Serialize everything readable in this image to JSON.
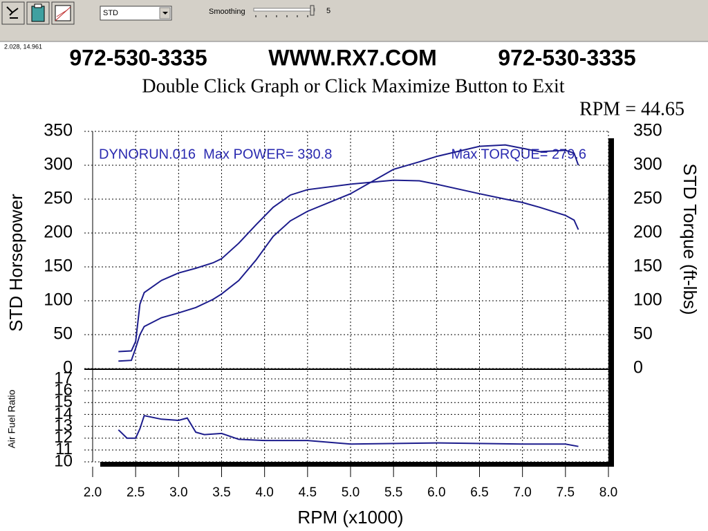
{
  "toolbar": {
    "mode": "STD",
    "smoothing_label": "Smoothing",
    "smoothing_value": "5"
  },
  "status": "2.028, 14.961",
  "header": {
    "phone_left": "972-530-3335",
    "website": "WWW.RX7.COM",
    "phone_right": "972-530-3335",
    "instruction": "Double Click Graph or Click Maximize Button to Exit",
    "readout": "RPM = 44.65"
  },
  "chart_data": [
    {
      "type": "line",
      "ylabel": "STD Horsepower",
      "y2label": "STD Torque (ft-lbs)",
      "annotations": [
        "DYNORUN.016  Max POWER= 330.8",
        "Max TORQUE= 279.6"
      ],
      "xlim": [
        2,
        8
      ],
      "xticks": [
        {
          "value": 2,
          "label": "2.0"
        },
        2.5,
        {
          "value": 3,
          "label": "3.0"
        },
        3.5,
        {
          "value": 4,
          "label": "4.0"
        },
        4.5,
        {
          "value": 5,
          "label": "5.0"
        },
        5.5,
        {
          "value": 6,
          "label": "6.0"
        },
        6.5,
        {
          "value": 7,
          "label": "7.0"
        },
        7.5,
        {
          "value": 8,
          "label": "8.0"
        }
      ],
      "ylim": [
        0,
        350
      ],
      "yticks": [
        0,
        50,
        100,
        150,
        200,
        250,
        300,
        350
      ],
      "y2lim": [
        0,
        350
      ],
      "y2ticks": [
        0,
        50,
        100,
        150,
        200,
        250,
        300,
        350
      ],
      "grid": true,
      "x": [
        2.3,
        2.45,
        2.5,
        2.55,
        2.6,
        2.8,
        3.0,
        3.2,
        3.4,
        3.5,
        3.7,
        3.9,
        4.1,
        4.3,
        4.5,
        5.0,
        5.5,
        5.8,
        6.0,
        6.5,
        6.8,
        7.0,
        7.2,
        7.5,
        7.6,
        7.65
      ],
      "series": [
        {
          "color": "#1c1c8c",
          "values": [
            11,
            12,
            30,
            50,
            62,
            75,
            82,
            90,
            102,
            110,
            130,
            160,
            195,
            218,
            232,
            258,
            294,
            305,
            313,
            328,
            330,
            325,
            320,
            322,
            318,
            300
          ]
        },
        {
          "color": "#1c1c8c",
          "axis": "y2",
          "values": [
            25,
            26,
            40,
            95,
            112,
            130,
            141,
            148,
            156,
            162,
            185,
            212,
            238,
            256,
            264,
            272,
            278,
            277,
            272,
            258,
            250,
            245,
            238,
            226,
            219,
            205
          ]
        }
      ]
    },
    {
      "type": "line",
      "ylabel": "Air Fuel Ratio",
      "xlabel": "RPM (x1000)",
      "xlim": [
        2,
        8
      ],
      "xticks": [
        {
          "value": 2,
          "label": "2.0"
        },
        2.5,
        {
          "value": 3,
          "label": "3.0"
        },
        3.5,
        {
          "value": 4,
          "label": "4.0"
        },
        4.5,
        {
          "value": 5,
          "label": "5.0"
        },
        5.5,
        {
          "value": 6,
          "label": "6.0"
        },
        6.5,
        {
          "value": 7,
          "label": "7.0"
        },
        7.5,
        {
          "value": 8,
          "label": "8.0"
        }
      ],
      "ylim": [
        10,
        17.7
      ],
      "yticks": [
        10,
        11,
        12,
        13,
        14,
        15,
        16,
        17
      ],
      "grid": true,
      "x": [
        2.3,
        2.4,
        2.5,
        2.55,
        2.6,
        2.8,
        3.0,
        3.1,
        3.2,
        3.3,
        3.5,
        3.7,
        4.0,
        4.5,
        5.0,
        6.0,
        7.0,
        7.5,
        7.65
      ],
      "series": [
        {
          "color": "#1c1c8c",
          "values": [
            12.7,
            12.0,
            12.0,
            12.8,
            13.9,
            13.6,
            13.5,
            13.7,
            12.5,
            12.3,
            12.4,
            11.9,
            11.8,
            11.8,
            11.5,
            11.6,
            11.5,
            11.5,
            11.3
          ]
        }
      ]
    }
  ]
}
